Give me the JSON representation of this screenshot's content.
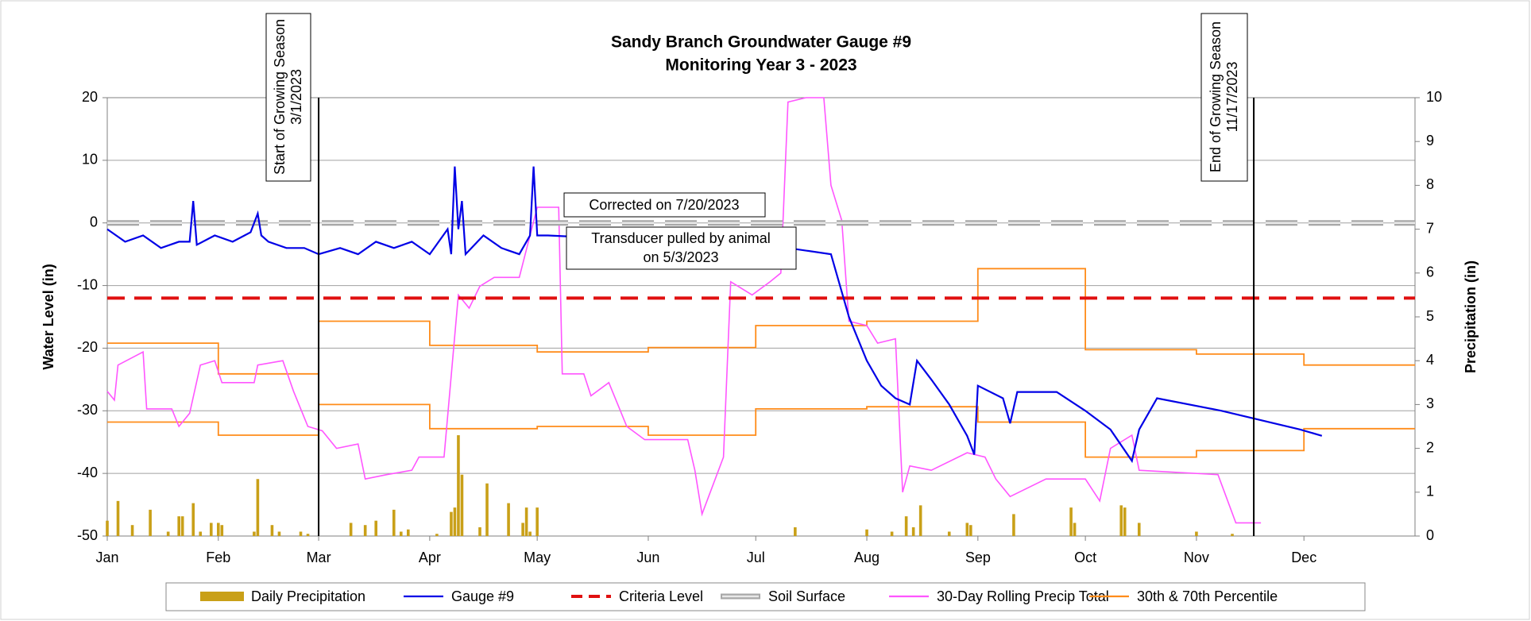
{
  "chart_data": {
    "type": "line",
    "title": "Sandy Branch Groundwater Gauge #9",
    "subtitle": "Monitoring Year 3 - 2023",
    "ylabel": "Water Level (in)",
    "y2label": "Precipitation (in)",
    "xlim": [
      0,
      365
    ],
    "xticks": [
      {
        "value": 0,
        "label": "Jan"
      },
      {
        "value": 31,
        "label": "Feb"
      },
      {
        "value": 59,
        "label": "Mar"
      },
      {
        "value": 90,
        "label": "Apr"
      },
      {
        "value": 120,
        "label": "May"
      },
      {
        "value": 151,
        "label": "Jun"
      },
      {
        "value": 181,
        "label": "Jul"
      },
      {
        "value": 212,
        "label": "Aug"
      },
      {
        "value": 243,
        "label": "Sep"
      },
      {
        "value": 273,
        "label": "Oct"
      },
      {
        "value": 304,
        "label": "Nov"
      },
      {
        "value": 334,
        "label": "Dec"
      }
    ],
    "ylim": [
      -50,
      20
    ],
    "yticks": [
      -50,
      -40,
      -30,
      -20,
      -10,
      0,
      10,
      20
    ],
    "y2lim": [
      0,
      10
    ],
    "y2ticks": [
      0,
      1,
      2,
      3,
      4,
      5,
      6,
      7,
      8,
      9,
      10
    ],
    "grid": true,
    "series": [
      {
        "name": "Daily Precipitation",
        "kind": "bar",
        "axis": "y2",
        "color": "#c9a018",
        "x": [
          0,
          3,
          7,
          12,
          17,
          20,
          21,
          24,
          26,
          29,
          31,
          32,
          41,
          42,
          46,
          48,
          54,
          56,
          68,
          72,
          75,
          80,
          82,
          84,
          92,
          96,
          97,
          98,
          99,
          104,
          106,
          112,
          116,
          117,
          118,
          120,
          192,
          212,
          219,
          223,
          225,
          227,
          235,
          240,
          241,
          253,
          269,
          270,
          283,
          284,
          288,
          304,
          314
        ],
        "values": [
          0.35,
          0.8,
          0.25,
          0.6,
          0.1,
          0.45,
          0.45,
          0.75,
          0.1,
          0.3,
          0.3,
          0.25,
          0.1,
          1.3,
          0.25,
          0.1,
          0.1,
          0.05,
          0.3,
          0.25,
          0.35,
          0.6,
          0.1,
          0.15,
          0.05,
          0.55,
          0.65,
          2.3,
          1.4,
          0.2,
          1.2,
          0.75,
          0.3,
          0.65,
          0.1,
          0.65,
          0.2,
          0.15,
          0.1,
          0.45,
          0.2,
          0.7,
          0.1,
          0.3,
          0.25,
          0.5,
          0.65,
          0.3,
          0.7,
          0.65,
          0.3,
          0.1,
          0.05
        ]
      },
      {
        "name": "Gauge #9",
        "kind": "line",
        "color": "#0000e6",
        "x": [
          0,
          5,
          10,
          15,
          20,
          23,
          24,
          25,
          30,
          35,
          40,
          42,
          43,
          45,
          50,
          55,
          59,
          65,
          70,
          75,
          80,
          85,
          90,
          95,
          96,
          97,
          98,
          99,
          100,
          105,
          110,
          115,
          118,
          119,
          120,
          123,
          160,
          190,
          202,
          207,
          212,
          216,
          220,
          224,
          226,
          230,
          235,
          240,
          242,
          243,
          250,
          252,
          254,
          265,
          273,
          280,
          286,
          288,
          293,
          311,
          333,
          339
        ],
        "values": [
          -1,
          -3,
          -2,
          -4,
          -3,
          -3,
          3.5,
          -3.5,
          -2,
          -3,
          -1.5,
          1.5,
          -2,
          -3,
          -4,
          -4,
          -5,
          -4,
          -5,
          -3,
          -4,
          -3,
          -5,
          -1,
          -5,
          9,
          -1,
          3.5,
          -5,
          -2,
          -4,
          -5,
          -2,
          9,
          -2,
          -2,
          -3,
          -4,
          -5,
          -15,
          -22,
          -26,
          -28,
          -29,
          -22,
          -25,
          -29,
          -34,
          -37,
          -26,
          -28,
          -32,
          -27,
          -27,
          -30,
          -33,
          -38,
          -33,
          -28,
          -30,
          -33,
          -34
        ]
      },
      {
        "name": "Criteria Level",
        "kind": "hline",
        "color": "#e01010",
        "value": -12
      },
      {
        "name": "Soil Surface",
        "kind": "hline",
        "color": "#bfbfbf",
        "value": 0
      },
      {
        "name": "30-Day Rolling Precip Total",
        "kind": "line",
        "axis": "y2",
        "color": "#ff55ff",
        "x": [
          0,
          2,
          3,
          10,
          11,
          18,
          20,
          23,
          26,
          30,
          32,
          41,
          42,
          49,
          52,
          56,
          60,
          64,
          70,
          72,
          78,
          85,
          87,
          94,
          98,
          101,
          104,
          108,
          115,
          120,
          126,
          127,
          133,
          135,
          140,
          145,
          150,
          162,
          164,
          166,
          172,
          174,
          180,
          185,
          188,
          190,
          195,
          200,
          202,
          205,
          207,
          212,
          215,
          220,
          222,
          224,
          230,
          240,
          245,
          248,
          252,
          262,
          273,
          277,
          280,
          286,
          288,
          310,
          315,
          322
        ],
        "values": [
          3.3,
          3.1,
          3.9,
          4.2,
          2.9,
          2.9,
          2.5,
          2.8,
          3.9,
          4.0,
          3.5,
          3.5,
          3.9,
          4.0,
          3.3,
          2.5,
          2.4,
          2.0,
          2.1,
          1.3,
          1.4,
          1.5,
          1.8,
          1.8,
          5.5,
          5.2,
          5.7,
          5.9,
          5.9,
          7.5,
          7.5,
          3.7,
          3.7,
          3.2,
          3.5,
          2.5,
          2.2,
          2.2,
          1.5,
          0.5,
          1.8,
          5.8,
          5.5,
          5.8,
          6.0,
          9.9,
          10,
          10,
          8.0,
          7.2,
          4.9,
          4.8,
          4.4,
          4.5,
          1.0,
          1.6,
          1.5,
          1.9,
          1.8,
          1.3,
          0.9,
          1.3,
          1.3,
          0.8,
          2.0,
          2.3,
          1.5,
          1.4,
          0.3,
          0.3
        ]
      },
      {
        "name": "30th & 70th Percentile",
        "kind": "step",
        "axis": "y2",
        "color": "#ff8c1a",
        "x": [
          0,
          31,
          59,
          90,
          120,
          151,
          181,
          212,
          243,
          273,
          304,
          334
        ],
        "lines": [
          {
            "values": [
              4.4,
              3.7,
              4.9,
              4.35,
              4.2,
              4.3,
              4.8,
              4.9,
              6.1,
              4.25,
              4.15,
              3.9
            ]
          },
          {
            "values": [
              2.6,
              2.3,
              3.0,
              2.45,
              2.5,
              2.3,
              2.9,
              2.95,
              2.6,
              1.8,
              1.95,
              2.45
            ]
          }
        ]
      }
    ],
    "annotations": [
      {
        "text": "Start of Growing Season",
        "date": "3/1/2023",
        "x": 59
      },
      {
        "text": "End of Growing Season",
        "date": "11/17/2023",
        "x": 320
      }
    ],
    "notes": [
      "Corrected on 7/20/2023",
      "Transducer pulled by animal",
      "on 5/3/2023"
    ]
  }
}
